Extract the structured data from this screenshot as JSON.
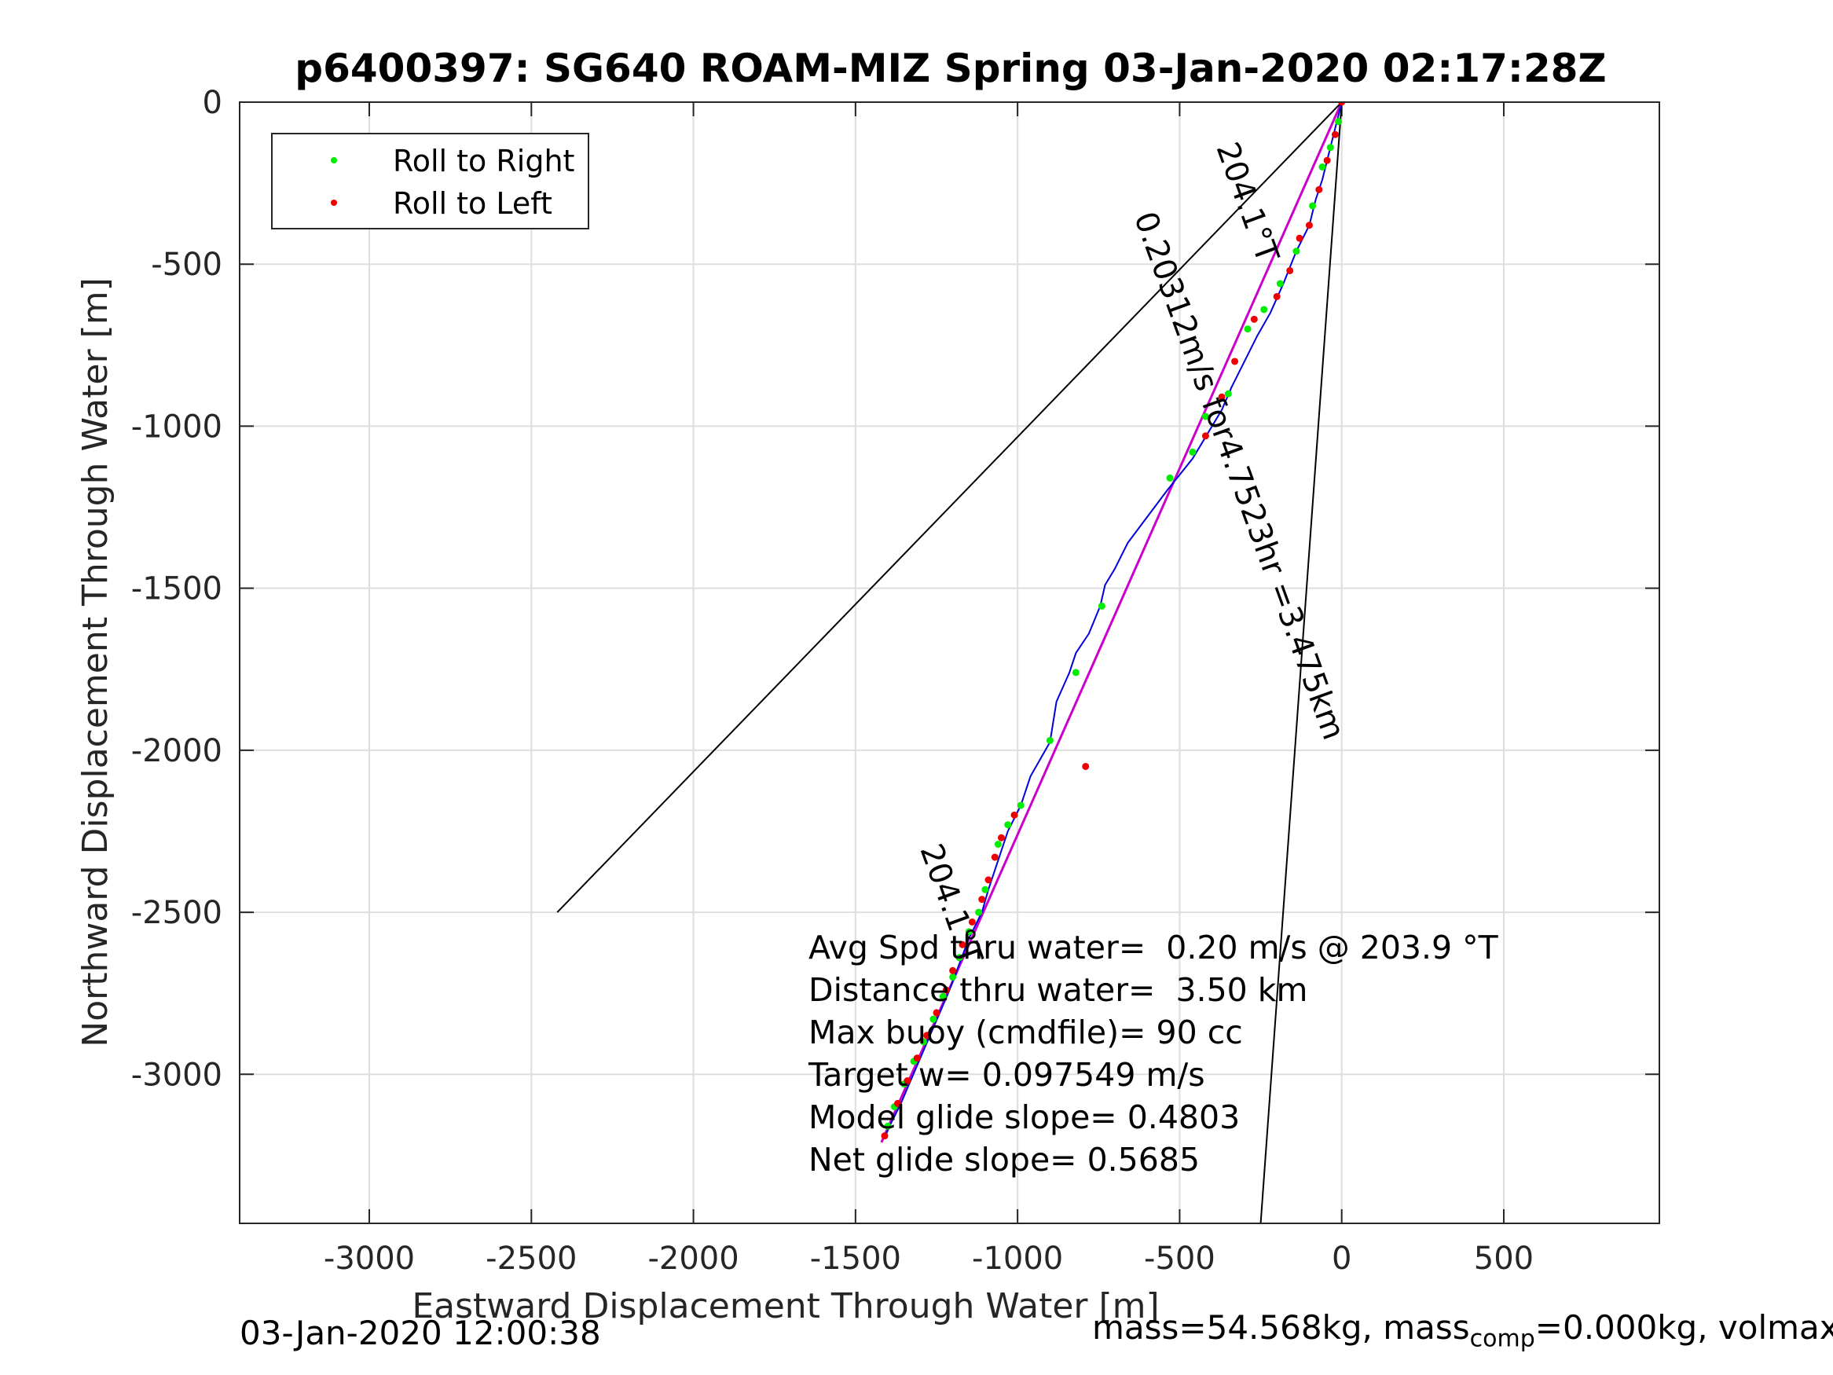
{
  "chart_data": {
    "type": "scatter",
    "title": "p6400397: SG640 ROAM-MIZ Spring 03-Jan-2020 02:17:28Z",
    "xlabel": "Eastward Displacement Through Water [m]",
    "ylabel": "Northward Displacement Through Water [m]",
    "xlim": [
      -3400,
      980
    ],
    "ylim": [
      -3460,
      0
    ],
    "xticks": [
      -3000,
      -2500,
      -2000,
      -1500,
      -1000,
      -500,
      0,
      500
    ],
    "xtick_labels": [
      "-3000",
      "-2500",
      "-2000",
      "-1500",
      "-1000",
      "-500",
      "0",
      "500"
    ],
    "yticks": [
      0,
      -500,
      -1000,
      -1500,
      -2000,
      -2500,
      -3000
    ],
    "ytick_labels": [
      "0",
      "-500",
      "-1000",
      "-1500",
      "-2000",
      "-2500",
      "-3000"
    ],
    "grid": true,
    "legend": {
      "placement": "top-left",
      "entries": [
        {
          "label": "Roll to Right",
          "color": "#00ee00"
        },
        {
          "label": "Roll to Left",
          "color": "#ee0000"
        }
      ]
    },
    "colors": {
      "track": "#0000dd",
      "glide_line": "#cc00cc",
      "reference_lines": "#000000",
      "roll_right": "#00ee00",
      "roll_left": "#ee0000"
    },
    "series": [
      {
        "role": "track",
        "x": [
          0,
          -20,
          -40,
          -60,
          -80,
          -100,
          -140,
          -180,
          -220,
          -260,
          -300,
          -340,
          -370,
          -400,
          -430,
          -460,
          -500,
          -540,
          -600,
          -660,
          -700,
          -730,
          -745,
          -780,
          -820,
          -840,
          -880,
          -900,
          -960,
          -990,
          -1030,
          -1060,
          -1090,
          -1110,
          -1150,
          -1180,
          -1210,
          -1240,
          -1270,
          -1300,
          -1330,
          -1360,
          -1390,
          -1410
        ],
        "y": [
          0,
          -80,
          -160,
          -240,
          -300,
          -380,
          -460,
          -560,
          -650,
          -720,
          -800,
          -880,
          -950,
          -1000,
          -1050,
          -1100,
          -1150,
          -1200,
          -1280,
          -1360,
          -1440,
          -1490,
          -1555,
          -1640,
          -1700,
          -1760,
          -1850,
          -1975,
          -2080,
          -2170,
          -2250,
          -2340,
          -2430,
          -2500,
          -2580,
          -2660,
          -2740,
          -2810,
          -2880,
          -2950,
          -3020,
          -3090,
          -3150,
          -3195
        ]
      },
      {
        "name": "Roll to Right",
        "x": [
          -10,
          -35,
          -60,
          -90,
          -140,
          -190,
          -240,
          -290,
          -350,
          -420,
          -460,
          -530,
          -740,
          -820,
          -900,
          -990,
          -1030,
          -1060,
          -1100,
          -1120,
          -1150,
          -1180,
          -1200,
          -1230,
          -1260,
          -1290,
          -1320,
          -1350,
          -1380,
          -1400
        ],
        "y": [
          -60,
          -140,
          -200,
          -320,
          -460,
          -560,
          -640,
          -700,
          -900,
          -970,
          -1080,
          -1160,
          -1555,
          -1760,
          -1970,
          -2170,
          -2230,
          -2290,
          -2430,
          -2500,
          -2560,
          -2640,
          -2700,
          -2760,
          -2830,
          -2900,
          -2960,
          -3030,
          -3100,
          -3160
        ]
      },
      {
        "name": "Roll to Left",
        "x": [
          0,
          -20,
          -45,
          -70,
          -100,
          -130,
          -160,
          -200,
          -270,
          -330,
          -370,
          -420,
          -790,
          -1010,
          -1050,
          -1070,
          -1090,
          -1110,
          -1140,
          -1170,
          -1200,
          -1220,
          -1250,
          -1280,
          -1310,
          -1340,
          -1370,
          -1410
        ],
        "y": [
          0,
          -100,
          -180,
          -270,
          -380,
          -420,
          -520,
          -600,
          -670,
          -800,
          -910,
          -1030,
          -2050,
          -2200,
          -2270,
          -2330,
          -2400,
          -2460,
          -2530,
          -2600,
          -2680,
          -2740,
          -2810,
          -2880,
          -2950,
          -3020,
          -3090,
          -3190
        ]
      }
    ],
    "lines": [
      {
        "role": "glide_line",
        "x": [
          0,
          -1420
        ],
        "y": [
          0,
          -3210
        ]
      },
      {
        "role": "reference_lines",
        "x": [
          0,
          -2420
        ],
        "y": [
          0,
          -2500
        ]
      },
      {
        "role": "reference_lines",
        "x": [
          0,
          -250
        ],
        "y": [
          0,
          -3460
        ]
      }
    ],
    "annotations": {
      "heading_top": "204.1°T",
      "speed_label": "0.20312m/s for4.7523hr =3.475km",
      "heading_bottom": "204.1°T",
      "stats": [
        "Avg Spd thru water=  0.20 m/s @ 203.9 °T",
        "Distance thru water=  3.50 km",
        "Max buoy (cmdfile)= 90 cc",
        "Target w= 0.097549 m/s",
        "Model glide slope= 0.4803",
        "Net glide slope= 0.5685"
      ]
    }
  },
  "footer": {
    "left": "03-Jan-2020 12:00:38",
    "right_prefix": "mass=54.568kg, mass",
    "right_sub": "comp",
    "right_suffix": "=0.000kg, volmax"
  }
}
